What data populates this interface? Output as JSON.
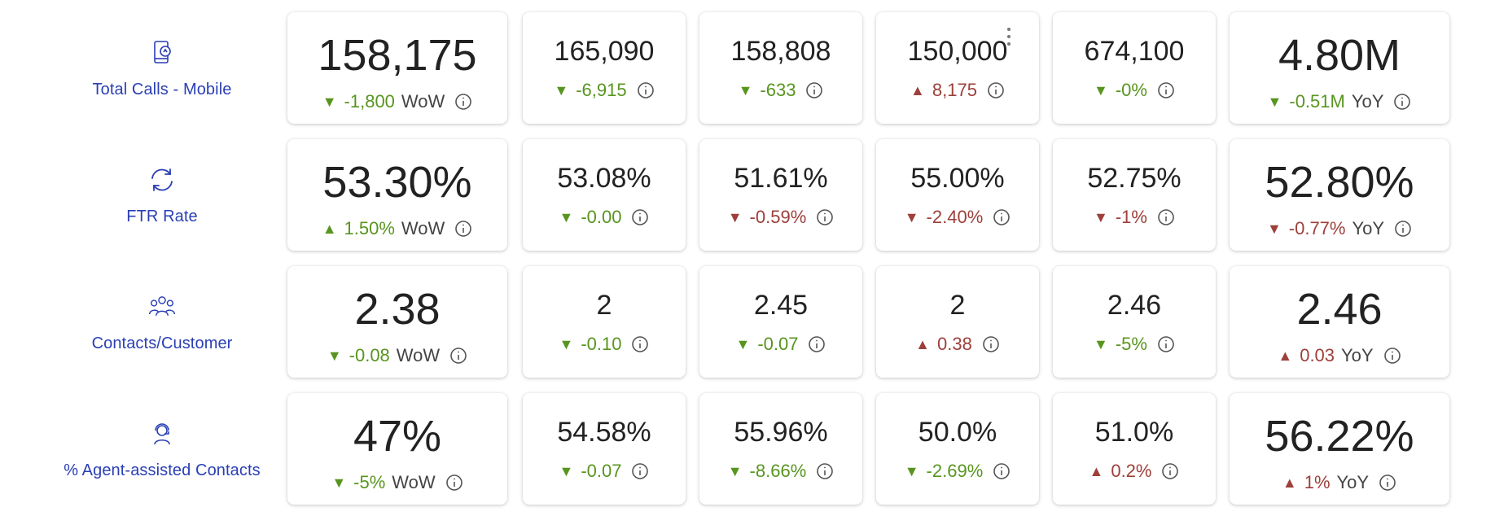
{
  "menu_icon": "more-vertical-icon",
  "rows": [
    {
      "label": "Total Calls - Mobile",
      "icon": "mobile-phone-icon",
      "cards": [
        {
          "value": "158,175",
          "delta": "-1,800",
          "dir": "down",
          "tone": "green",
          "suffix": "WoW"
        },
        {
          "value": "165,090",
          "delta": "-6,915",
          "dir": "down",
          "tone": "green",
          "suffix": ""
        },
        {
          "value": "158,808",
          "delta": "-633",
          "dir": "down",
          "tone": "green",
          "suffix": ""
        },
        {
          "value": "150,000",
          "delta": "8,175",
          "dir": "up",
          "tone": "red",
          "suffix": ""
        },
        {
          "value": "674,100",
          "delta": "-0%",
          "dir": "down",
          "tone": "green",
          "suffix": ""
        },
        {
          "value": "4.80M",
          "delta": "-0.51M",
          "dir": "down",
          "tone": "green",
          "suffix": "YoY"
        }
      ]
    },
    {
      "label": "FTR Rate",
      "icon": "refresh-icon",
      "cards": [
        {
          "value": "53.30%",
          "delta": "1.50%",
          "dir": "up",
          "tone": "green",
          "suffix": "WoW"
        },
        {
          "value": "53.08%",
          "delta": "-0.00",
          "dir": "down",
          "tone": "green",
          "suffix": ""
        },
        {
          "value": "51.61%",
          "delta": "-0.59%",
          "dir": "down",
          "tone": "red",
          "suffix": ""
        },
        {
          "value": "55.00%",
          "delta": "-2.40%",
          "dir": "down",
          "tone": "red",
          "suffix": ""
        },
        {
          "value": "52.75%",
          "delta": "-1%",
          "dir": "down",
          "tone": "red",
          "suffix": ""
        },
        {
          "value": "52.80%",
          "delta": "-0.77%",
          "dir": "down",
          "tone": "red",
          "suffix": "YoY"
        }
      ]
    },
    {
      "label": "Contacts/Customer",
      "icon": "people-group-icon",
      "cards": [
        {
          "value": "2.38",
          "delta": "-0.08",
          "dir": "down",
          "tone": "green",
          "suffix": "WoW"
        },
        {
          "value": "2",
          "delta": "-0.10",
          "dir": "down",
          "tone": "green",
          "suffix": ""
        },
        {
          "value": "2.45",
          "delta": "-0.07",
          "dir": "down",
          "tone": "green",
          "suffix": ""
        },
        {
          "value": "2",
          "delta": "0.38",
          "dir": "up",
          "tone": "red",
          "suffix": ""
        },
        {
          "value": "2.46",
          "delta": "-5%",
          "dir": "down",
          "tone": "green",
          "suffix": ""
        },
        {
          "value": "2.46",
          "delta": "0.03",
          "dir": "up",
          "tone": "red",
          "suffix": "YoY"
        }
      ]
    },
    {
      "label": "% Agent-assisted Contacts",
      "icon": "support-agent-icon",
      "cards": [
        {
          "value": "47%",
          "delta": "-5%",
          "dir": "down",
          "tone": "green",
          "suffix": "WoW"
        },
        {
          "value": "54.58%",
          "delta": "-0.07",
          "dir": "down",
          "tone": "green",
          "suffix": ""
        },
        {
          "value": "55.96%",
          "delta": "-8.66%",
          "dir": "down",
          "tone": "green",
          "suffix": ""
        },
        {
          "value": "50.0%",
          "delta": "-2.69%",
          "dir": "down",
          "tone": "green",
          "suffix": ""
        },
        {
          "value": "51.0%",
          "delta": "0.2%",
          "dir": "up",
          "tone": "red",
          "suffix": ""
        },
        {
          "value": "56.22%",
          "delta": "1%",
          "dir": "up",
          "tone": "red",
          "suffix": "YoY"
        }
      ]
    }
  ]
}
